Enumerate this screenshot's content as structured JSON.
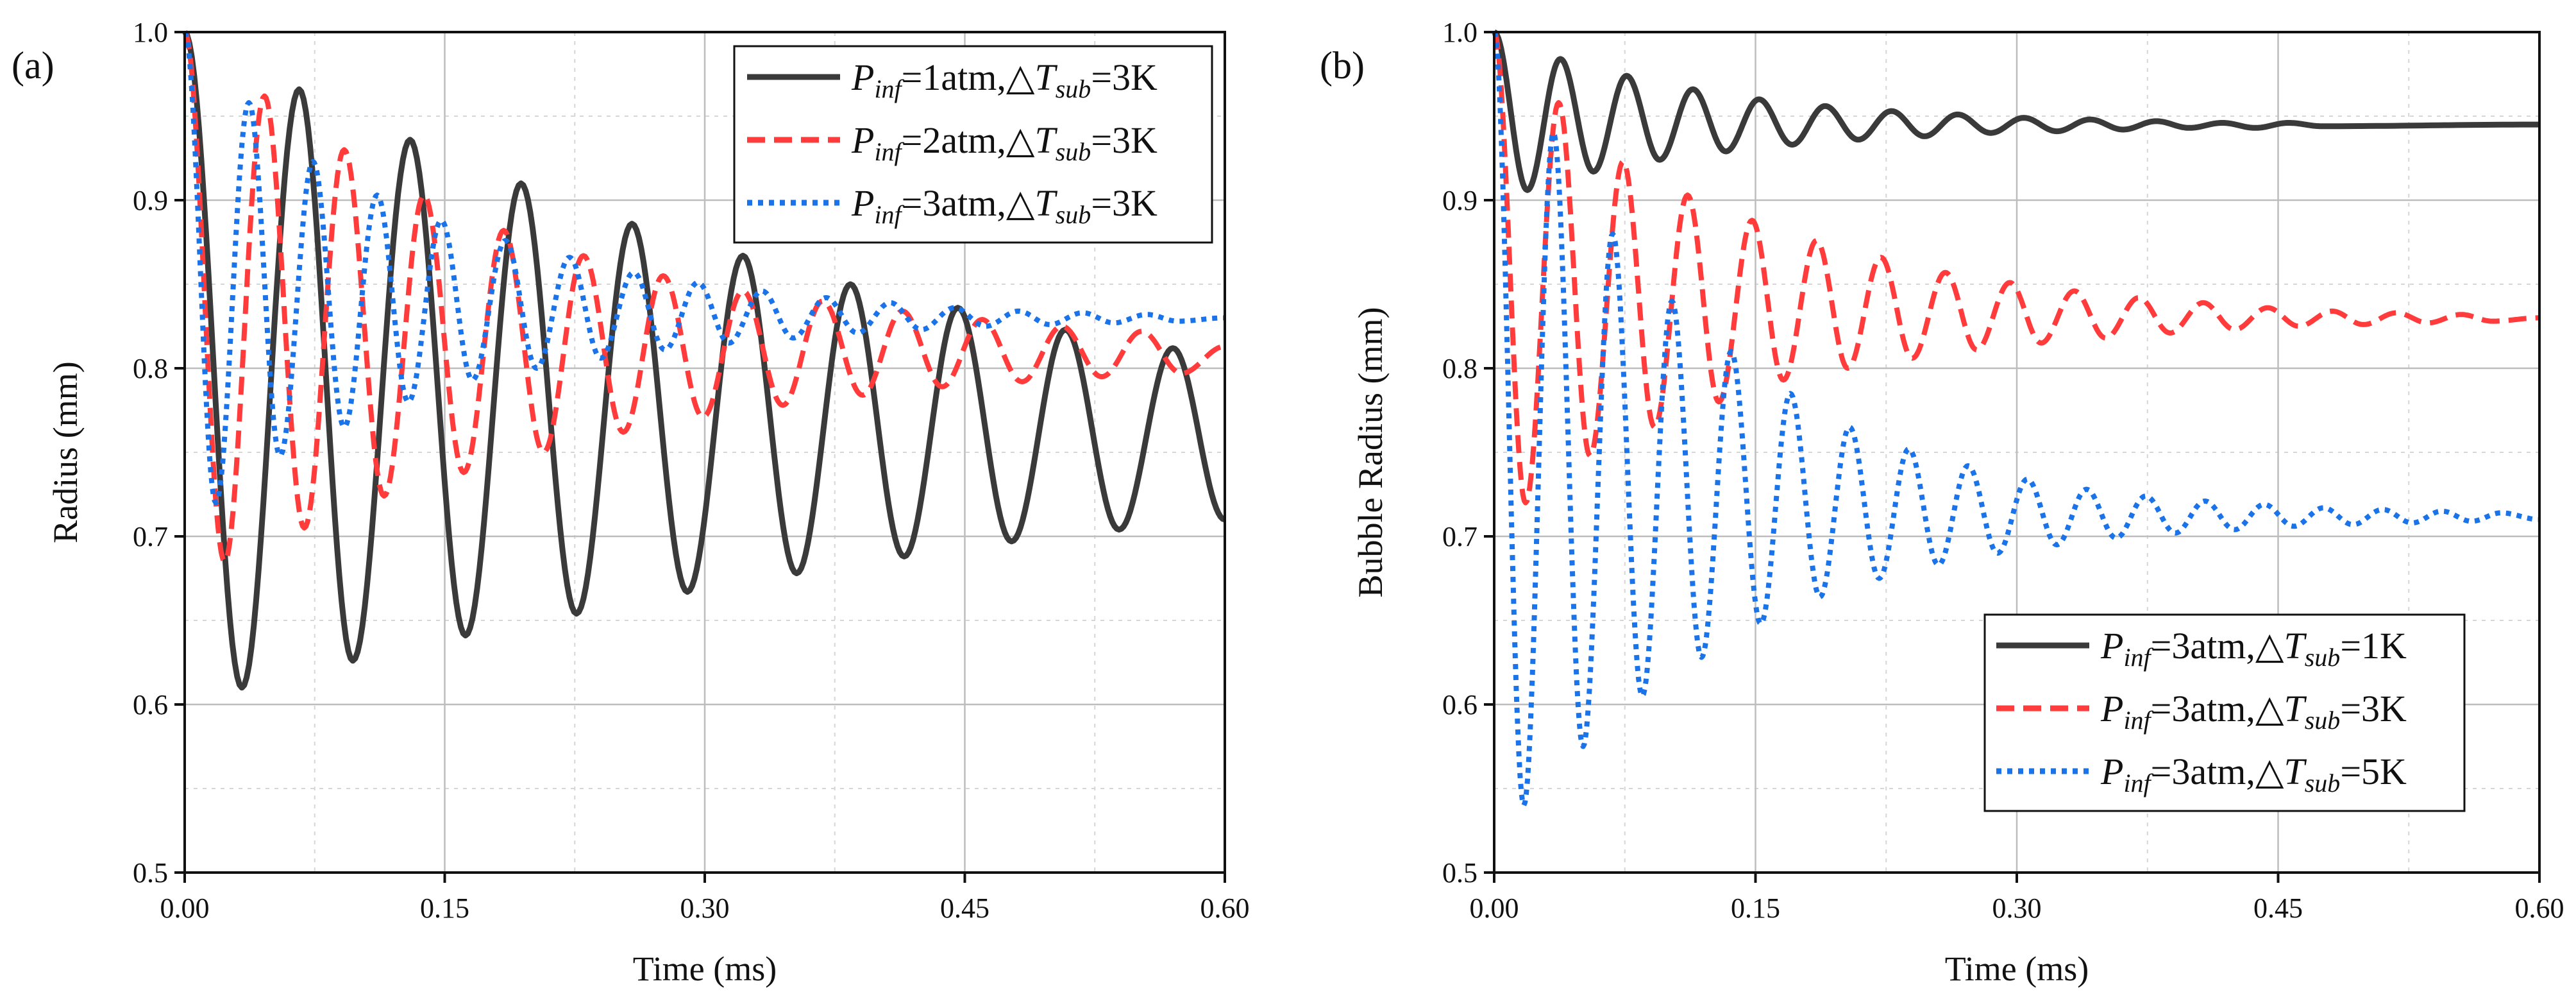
{
  "chart_data": [
    {
      "type": "line",
      "panel_label": "(a)",
      "xlabel": "Time (ms)",
      "ylabel": "Radius (mm)",
      "xlim": [
        0,
        0.6
      ],
      "ylim": [
        0.5,
        1.0
      ],
      "xticks": [
        "0.00",
        "0.15",
        "0.30",
        "0.45",
        "0.60"
      ],
      "yticks": [
        "0.5",
        "0.6",
        "0.7",
        "0.8",
        "0.9",
        "1.0"
      ],
      "grid": true,
      "legend_position": "top-right",
      "series": [
        {
          "name": "P_inf=1atm,△T_sub=3K",
          "legend": {
            "p": "P",
            "p_sub": "inf",
            "mid": "=1atm,△",
            "t": "T",
            "t_sub": "sub",
            "end": "=3K"
          },
          "color": "#3a3a3a",
          "style": "solid",
          "extrema": [
            [
              0.0,
              1.0
            ],
            [
              0.033,
              0.61
            ],
            [
              0.066,
              0.966
            ],
            [
              0.097,
              0.626
            ],
            [
              0.13,
              0.936
            ],
            [
              0.162,
              0.641
            ],
            [
              0.194,
              0.91
            ],
            [
              0.226,
              0.654
            ],
            [
              0.258,
              0.886
            ],
            [
              0.29,
              0.667
            ],
            [
              0.322,
              0.867
            ],
            [
              0.353,
              0.678
            ],
            [
              0.384,
              0.85
            ],
            [
              0.415,
              0.688
            ],
            [
              0.446,
              0.836
            ],
            [
              0.477,
              0.697
            ],
            [
              0.508,
              0.823
            ],
            [
              0.539,
              0.704
            ],
            [
              0.57,
              0.812
            ],
            [
              0.6,
              0.71
            ]
          ]
        },
        {
          "name": "P_inf=2atm,△T_sub=3K",
          "legend": {
            "p": "P",
            "p_sub": "inf",
            "mid": "=2atm,△",
            "t": "T",
            "t_sub": "sub",
            "end": "=3K"
          },
          "color": "#ff3b3b",
          "style": "dashed",
          "extrema": [
            [
              0.0,
              1.0
            ],
            [
              0.023,
              0.685
            ],
            [
              0.046,
              0.962
            ],
            [
              0.069,
              0.705
            ],
            [
              0.092,
              0.93
            ],
            [
              0.115,
              0.724
            ],
            [
              0.138,
              0.903
            ],
            [
              0.161,
              0.738
            ],
            [
              0.184,
              0.882
            ],
            [
              0.207,
              0.75
            ],
            [
              0.23,
              0.867
            ],
            [
              0.253,
              0.762
            ],
            [
              0.276,
              0.855
            ],
            [
              0.299,
              0.771
            ],
            [
              0.322,
              0.846
            ],
            [
              0.345,
              0.778
            ],
            [
              0.368,
              0.84
            ],
            [
              0.391,
              0.784
            ],
            [
              0.414,
              0.834
            ],
            [
              0.437,
              0.789
            ],
            [
              0.46,
              0.829
            ],
            [
              0.483,
              0.792
            ],
            [
              0.506,
              0.825
            ],
            [
              0.529,
              0.795
            ],
            [
              0.552,
              0.822
            ],
            [
              0.575,
              0.797
            ],
            [
              0.6,
              0.813
            ]
          ]
        },
        {
          "name": "P_inf=3atm,△T_sub=3K",
          "legend": {
            "p": "P",
            "p_sub": "inf",
            "mid": "=3atm,△",
            "t": "T",
            "t_sub": "sub",
            "end": "=3K"
          },
          "color": "#1a73e8",
          "style": "dotted",
          "extrema": [
            [
              0.0,
              1.0
            ],
            [
              0.018,
              0.72
            ],
            [
              0.037,
              0.958
            ],
            [
              0.055,
              0.748
            ],
            [
              0.074,
              0.923
            ],
            [
              0.092,
              0.765
            ],
            [
              0.111,
              0.903
            ],
            [
              0.129,
              0.78
            ],
            [
              0.148,
              0.888
            ],
            [
              0.166,
              0.793
            ],
            [
              0.185,
              0.876
            ],
            [
              0.203,
              0.8
            ],
            [
              0.222,
              0.866
            ],
            [
              0.24,
              0.806
            ],
            [
              0.259,
              0.857
            ],
            [
              0.277,
              0.811
            ],
            [
              0.296,
              0.851
            ],
            [
              0.314,
              0.815
            ],
            [
              0.333,
              0.846
            ],
            [
              0.351,
              0.818
            ],
            [
              0.37,
              0.842
            ],
            [
              0.388,
              0.821
            ],
            [
              0.407,
              0.839
            ],
            [
              0.425,
              0.823
            ],
            [
              0.444,
              0.836
            ],
            [
              0.462,
              0.825
            ],
            [
              0.481,
              0.834
            ],
            [
              0.499,
              0.826
            ],
            [
              0.518,
              0.833
            ],
            [
              0.536,
              0.827
            ],
            [
              0.555,
              0.832
            ],
            [
              0.573,
              0.828
            ],
            [
              0.6,
              0.83
            ]
          ]
        }
      ]
    },
    {
      "type": "line",
      "panel_label": "(b)",
      "xlabel": "Time (ms)",
      "ylabel": "Bubble Radius (mm)",
      "xlim": [
        0,
        0.6
      ],
      "ylim": [
        0.5,
        1.0
      ],
      "xticks": [
        "0.00",
        "0.15",
        "0.30",
        "0.45",
        "0.60"
      ],
      "yticks": [
        "0.5",
        "0.6",
        "0.7",
        "0.8",
        "0.9",
        "1.0"
      ],
      "grid": true,
      "legend_position": "bottom-right",
      "series": [
        {
          "name": "P_inf=3atm,△T_sub=1K",
          "legend": {
            "p": "P",
            "p_sub": "inf",
            "mid": "=3atm,△",
            "t": "T",
            "t_sub": "sub",
            "end": "=1K"
          },
          "color": "#3a3a3a",
          "style": "solid",
          "extrema": [
            [
              0.0,
              1.0
            ],
            [
              0.019,
              0.906
            ],
            [
              0.038,
              0.984
            ],
            [
              0.057,
              0.917
            ],
            [
              0.076,
              0.974
            ],
            [
              0.095,
              0.924
            ],
            [
              0.114,
              0.966
            ],
            [
              0.133,
              0.929
            ],
            [
              0.152,
              0.96
            ],
            [
              0.171,
              0.933
            ],
            [
              0.19,
              0.956
            ],
            [
              0.209,
              0.936
            ],
            [
              0.228,
              0.953
            ],
            [
              0.247,
              0.938
            ],
            [
              0.266,
              0.951
            ],
            [
              0.285,
              0.94
            ],
            [
              0.304,
              0.949
            ],
            [
              0.323,
              0.941
            ],
            [
              0.342,
              0.948
            ],
            [
              0.361,
              0.942
            ],
            [
              0.38,
              0.947
            ],
            [
              0.399,
              0.943
            ],
            [
              0.418,
              0.946
            ],
            [
              0.437,
              0.943
            ],
            [
              0.456,
              0.946
            ],
            [
              0.475,
              0.944
            ],
            [
              0.6,
              0.945
            ]
          ]
        },
        {
          "name": "P_inf=3atm,△T_sub=3K",
          "legend": {
            "p": "P",
            "p_sub": "inf",
            "mid": "=3atm,△",
            "t": "T",
            "t_sub": "sub",
            "end": "=3K"
          },
          "color": "#ff3b3b",
          "style": "dashed",
          "extrema": [
            [
              0.0,
              1.0
            ],
            [
              0.018,
              0.72
            ],
            [
              0.037,
              0.958
            ],
            [
              0.055,
              0.748
            ],
            [
              0.074,
              0.923
            ],
            [
              0.092,
              0.765
            ],
            [
              0.111,
              0.903
            ],
            [
              0.129,
              0.78
            ],
            [
              0.148,
              0.888
            ],
            [
              0.166,
              0.793
            ],
            [
              0.185,
              0.876
            ],
            [
              0.203,
              0.8
            ],
            [
              0.222,
              0.866
            ],
            [
              0.24,
              0.806
            ],
            [
              0.259,
              0.857
            ],
            [
              0.277,
              0.811
            ],
            [
              0.296,
              0.851
            ],
            [
              0.314,
              0.815
            ],
            [
              0.333,
              0.846
            ],
            [
              0.351,
              0.818
            ],
            [
              0.37,
              0.842
            ],
            [
              0.388,
              0.821
            ],
            [
              0.407,
              0.839
            ],
            [
              0.425,
              0.823
            ],
            [
              0.444,
              0.836
            ],
            [
              0.462,
              0.825
            ],
            [
              0.481,
              0.834
            ],
            [
              0.499,
              0.826
            ],
            [
              0.518,
              0.833
            ],
            [
              0.536,
              0.827
            ],
            [
              0.555,
              0.832
            ],
            [
              0.573,
              0.828
            ],
            [
              0.6,
              0.83
            ]
          ]
        },
        {
          "name": "P_inf=3atm,△T_sub=5K",
          "legend": {
            "p": "P",
            "p_sub": "inf",
            "mid": "=3atm,△",
            "t": "T",
            "t_sub": "sub",
            "end": "=5K"
          },
          "color": "#1a73e8",
          "style": "dotted",
          "extrema": [
            [
              0.0,
              1.0
            ],
            [
              0.017,
              0.54
            ],
            [
              0.034,
              0.94
            ],
            [
              0.051,
              0.575
            ],
            [
              0.068,
              0.88
            ],
            [
              0.085,
              0.605
            ],
            [
              0.102,
              0.84
            ],
            [
              0.119,
              0.628
            ],
            [
              0.136,
              0.81
            ],
            [
              0.153,
              0.648
            ],
            [
              0.17,
              0.785
            ],
            [
              0.187,
              0.664
            ],
            [
              0.204,
              0.765
            ],
            [
              0.221,
              0.675
            ],
            [
              0.238,
              0.752
            ],
            [
              0.255,
              0.683
            ],
            [
              0.272,
              0.742
            ],
            [
              0.289,
              0.69
            ],
            [
              0.306,
              0.734
            ],
            [
              0.323,
              0.695
            ],
            [
              0.34,
              0.728
            ],
            [
              0.357,
              0.699
            ],
            [
              0.374,
              0.724
            ],
            [
              0.391,
              0.702
            ],
            [
              0.408,
              0.721
            ],
            [
              0.425,
              0.704
            ],
            [
              0.442,
              0.719
            ],
            [
              0.459,
              0.706
            ],
            [
              0.476,
              0.717
            ],
            [
              0.493,
              0.707
            ],
            [
              0.51,
              0.716
            ],
            [
              0.527,
              0.708
            ],
            [
              0.544,
              0.715
            ],
            [
              0.561,
              0.709
            ],
            [
              0.578,
              0.714
            ],
            [
              0.6,
              0.71
            ]
          ]
        }
      ]
    }
  ]
}
